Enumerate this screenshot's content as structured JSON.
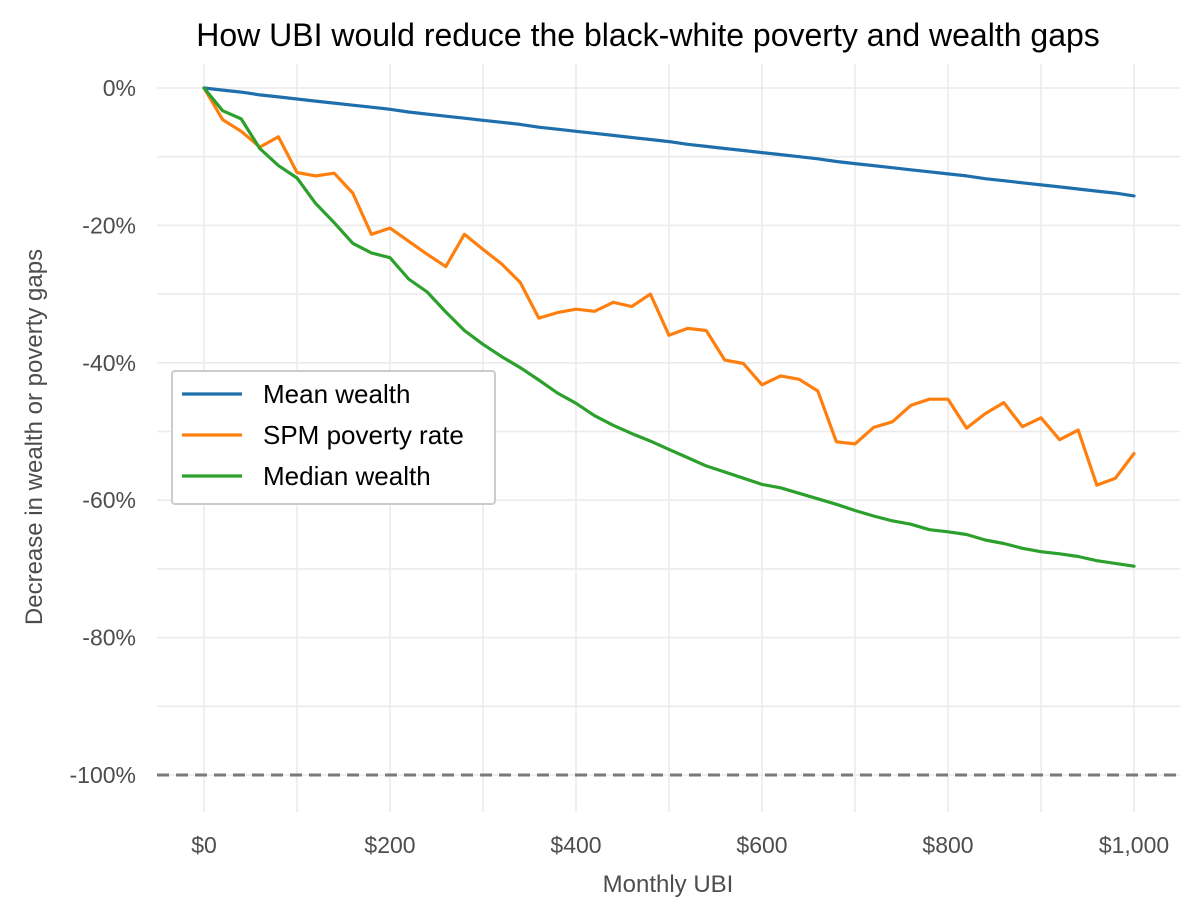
{
  "chart_data": {
    "type": "line",
    "title": "How UBI would reduce the black-white poverty and wealth gaps",
    "xlabel": "Monthly UBI",
    "ylabel": "Decrease in wealth or poverty gaps",
    "xlim": [
      -25,
      1025
    ],
    "ylim": [
      -105,
      3
    ],
    "x_ticks": [
      0,
      200,
      400,
      600,
      800,
      1000
    ],
    "x_tick_labels": [
      "$0",
      "$200",
      "$400",
      "$600",
      "$800",
      "$1,000"
    ],
    "y_ticks": [
      0,
      -20,
      -40,
      -60,
      -80,
      -100
    ],
    "y_tick_labels": [
      "0%",
      "-20%",
      "-40%",
      "-60%",
      "-80%",
      "-100%"
    ],
    "reference_line": {
      "y": -100,
      "style": "dashed",
      "color": "#7a7a7a"
    },
    "legend_position": "center-left",
    "x": [
      0,
      20,
      40,
      60,
      80,
      100,
      120,
      140,
      160,
      180,
      200,
      220,
      240,
      260,
      280,
      300,
      320,
      340,
      360,
      380,
      400,
      420,
      440,
      460,
      480,
      500,
      520,
      540,
      560,
      580,
      600,
      620,
      640,
      660,
      680,
      700,
      720,
      740,
      760,
      780,
      800,
      820,
      840,
      860,
      880,
      900,
      920,
      940,
      960,
      980,
      1000
    ],
    "series": [
      {
        "name": "Mean wealth",
        "color": "#1f6fad",
        "values": [
          0,
          -0.3,
          -0.6,
          -1.0,
          -1.3,
          -1.6,
          -1.9,
          -2.2,
          -2.5,
          -2.8,
          -3.1,
          -3.5,
          -3.8,
          -4.1,
          -4.4,
          -4.7,
          -5.0,
          -5.3,
          -5.7,
          -6.0,
          -6.3,
          -6.6,
          -6.9,
          -7.2,
          -7.5,
          -7.8,
          -8.2,
          -8.5,
          -8.8,
          -9.1,
          -9.4,
          -9.7,
          -10.0,
          -10.3,
          -10.7,
          -11.0,
          -11.3,
          -11.6,
          -11.9,
          -12.2,
          -12.5,
          -12.8,
          -13.2,
          -13.5,
          -13.8,
          -14.1,
          -14.4,
          -14.7,
          -15.0,
          -15.3,
          -15.7
        ]
      },
      {
        "name": "SPM poverty rate",
        "color": "#ff7f0e",
        "values": [
          0,
          -4.6,
          -6.3,
          -8.6,
          -7.1,
          -12.3,
          -12.8,
          -12.4,
          -15.3,
          -21.3,
          -20.4,
          -22.3,
          -24.2,
          -26.0,
          -21.3,
          -23.5,
          -25.6,
          -28.3,
          -33.5,
          -32.7,
          -32.2,
          -32.5,
          -31.2,
          -31.8,
          -30.0,
          -36.0,
          -35.0,
          -35.3,
          -39.6,
          -40.1,
          -43.2,
          -41.9,
          -42.4,
          -44.1,
          -51.5,
          -51.8,
          -49.4,
          -48.6,
          -46.2,
          -45.3,
          -45.3,
          -49.5,
          -47.4,
          -45.8,
          -49.3,
          -48.0,
          -51.2,
          -49.8,
          -57.8,
          -56.8,
          -53.2
        ]
      },
      {
        "name": "Median wealth",
        "color": "#2ca02c",
        "values": [
          0,
          -3.3,
          -4.5,
          -8.8,
          -11.3,
          -13.1,
          -16.8,
          -19.6,
          -22.6,
          -24.0,
          -24.7,
          -27.8,
          -29.7,
          -32.6,
          -35.3,
          -37.3,
          -39.1,
          -40.7,
          -42.5,
          -44.4,
          -45.9,
          -47.7,
          -49.1,
          -50.3,
          -51.4,
          -52.6,
          -53.8,
          -55.0,
          -55.9,
          -56.8,
          -57.7,
          -58.2,
          -59.0,
          -59.8,
          -60.6,
          -61.5,
          -62.3,
          -63.0,
          -63.5,
          -64.3,
          -64.6,
          -65.0,
          -65.8,
          -66.3,
          -67.0,
          -67.5,
          -67.8,
          -68.2,
          -68.8,
          -69.2,
          -69.6
        ]
      }
    ]
  }
}
